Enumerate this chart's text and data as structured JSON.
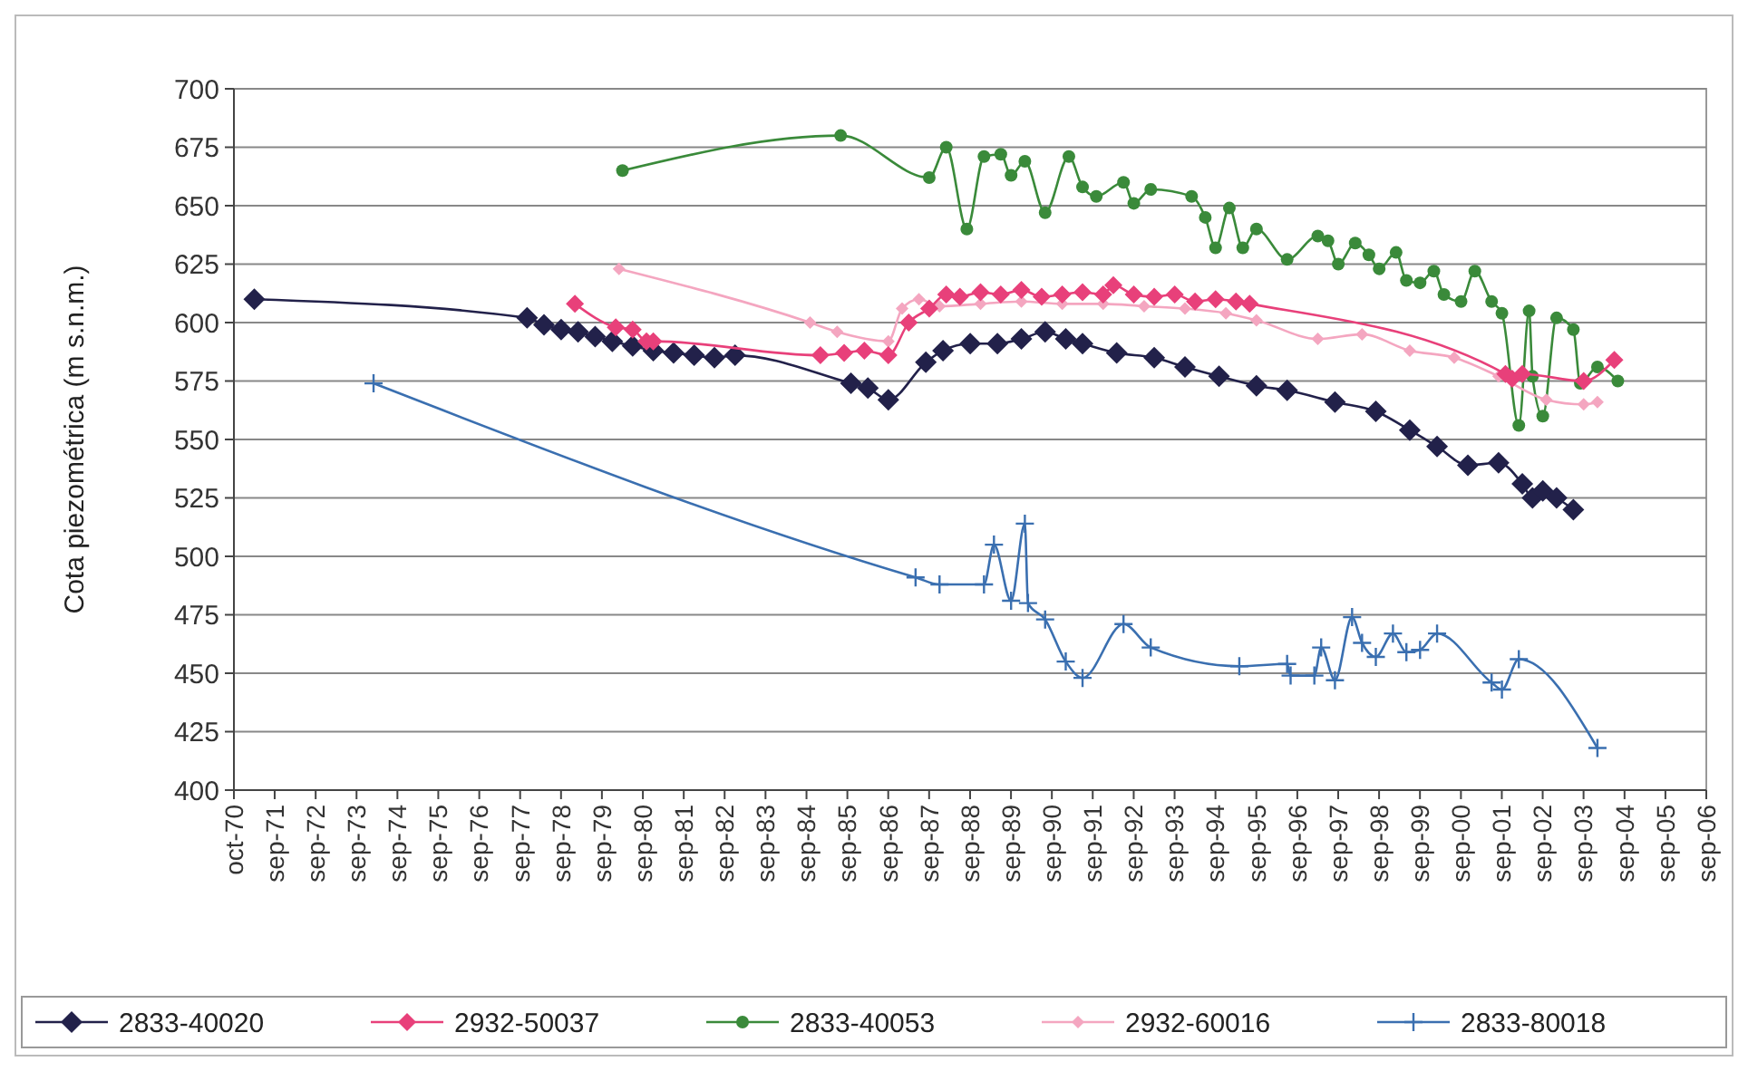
{
  "chart_data": {
    "type": "line",
    "ylabel": "Cota piezométrica (m s.n.m.)",
    "xlim": [
      "1970-10-01",
      "2006-09-30"
    ],
    "xticks": [
      {
        "value": "1970-10-01",
        "label": "oct-70"
      },
      {
        "value": "1971-09-30",
        "label": "sep-71"
      },
      {
        "value": "1972-09-30",
        "label": "sep-72"
      },
      {
        "value": "1973-09-30",
        "label": "sep-73"
      },
      {
        "value": "1974-09-30",
        "label": "sep-74"
      },
      {
        "value": "1975-09-30",
        "label": "sep-75"
      },
      {
        "value": "1976-09-30",
        "label": "sep-76"
      },
      {
        "value": "1977-09-30",
        "label": "sep-77"
      },
      {
        "value": "1978-09-30",
        "label": "sep-78"
      },
      {
        "value": "1979-09-30",
        "label": "sep-79"
      },
      {
        "value": "1980-09-30",
        "label": "sep-80"
      },
      {
        "value": "1981-09-30",
        "label": "sep-81"
      },
      {
        "value": "1982-09-30",
        "label": "sep-82"
      },
      {
        "value": "1983-09-30",
        "label": "sep-83"
      },
      {
        "value": "1984-09-30",
        "label": "sep-84"
      },
      {
        "value": "1985-09-30",
        "label": "sep-85"
      },
      {
        "value": "1986-09-30",
        "label": "sep-86"
      },
      {
        "value": "1987-09-30",
        "label": "sep-87"
      },
      {
        "value": "1988-09-30",
        "label": "sep-88"
      },
      {
        "value": "1989-09-30",
        "label": "sep-89"
      },
      {
        "value": "1990-09-30",
        "label": "sep-90"
      },
      {
        "value": "1991-09-30",
        "label": "sep-91"
      },
      {
        "value": "1992-09-30",
        "label": "sep-92"
      },
      {
        "value": "1993-09-30",
        "label": "sep-93"
      },
      {
        "value": "1994-09-30",
        "label": "sep-94"
      },
      {
        "value": "1995-09-30",
        "label": "sep-95"
      },
      {
        "value": "1996-09-30",
        "label": "sep-96"
      },
      {
        "value": "1997-09-30",
        "label": "sep-97"
      },
      {
        "value": "1998-09-30",
        "label": "sep-98"
      },
      {
        "value": "1999-09-30",
        "label": "sep-99"
      },
      {
        "value": "2000-09-30",
        "label": "sep-00"
      },
      {
        "value": "2001-09-30",
        "label": "sep-01"
      },
      {
        "value": "2002-09-30",
        "label": "sep-02"
      },
      {
        "value": "2003-09-30",
        "label": "sep-03"
      },
      {
        "value": "2004-09-30",
        "label": "sep-04"
      },
      {
        "value": "2005-09-30",
        "label": "sep-05"
      },
      {
        "value": "2006-09-30",
        "label": "sep-06"
      }
    ],
    "ylim": [
      400,
      700
    ],
    "yticks": [
      400,
      425,
      450,
      475,
      500,
      525,
      550,
      575,
      600,
      625,
      650,
      675,
      700
    ],
    "grid": "y",
    "legend": "bottom",
    "series": [
      {
        "name": "2833-40020",
        "color": "#22214a",
        "marker": "diamond",
        "x": [
          "1971-04",
          "1977-12",
          "1978-05",
          "1978-10",
          "1979-03",
          "1979-08",
          "1980-01",
          "1980-07",
          "1981-01",
          "1981-07",
          "1982-01",
          "1982-07",
          "1983-01",
          "1985-11",
          "1986-04",
          "1986-10",
          "1987-09",
          "1988-02",
          "1988-10",
          "1989-06",
          "1990-01",
          "1990-08",
          "1991-02",
          "1991-07",
          "1992-05",
          "1993-04",
          "1994-01",
          "1994-11",
          "1995-10",
          "1996-07",
          "1997-09",
          "1998-09",
          "1999-07",
          "2000-03",
          "2000-12",
          "2001-09",
          "2002-04",
          "2002-07",
          "2002-10",
          "2003-02",
          "2003-07"
        ],
        "values": [
          610,
          602,
          599,
          597,
          596,
          594,
          592,
          590,
          588,
          587,
          586,
          585,
          586,
          574,
          572,
          567,
          583,
          588,
          591,
          591,
          593,
          596,
          593,
          591,
          587,
          585,
          581,
          577,
          573,
          571,
          566,
          562,
          554,
          547,
          539,
          540,
          531,
          525,
          528,
          525,
          520
        ]
      },
      {
        "name": "2932-50037",
        "color": "#e8407a",
        "marker": "diamond",
        "x": [
          "1979-02",
          "1980-02",
          "1980-07",
          "1980-11",
          "1981-01",
          "1985-02",
          "1985-09",
          "1986-03",
          "1986-10",
          "1987-04",
          "1987-10",
          "1988-03",
          "1988-07",
          "1989-01",
          "1989-07",
          "1990-01",
          "1990-07",
          "1991-01",
          "1991-07",
          "1992-01",
          "1992-04",
          "1992-10",
          "1993-04",
          "1993-10",
          "1994-04",
          "1994-10",
          "1995-04",
          "1995-08",
          "2001-11",
          "2002-01",
          "2002-04",
          "2003-10",
          "2004-07"
        ],
        "values": [
          608,
          598,
          597,
          592,
          592,
          586,
          587,
          588,
          586,
          600,
          606,
          612,
          611,
          613,
          612,
          614,
          611,
          612,
          613,
          612,
          616,
          612,
          611,
          612,
          609,
          610,
          609,
          608,
          578,
          576,
          578,
          575,
          584
        ]
      },
      {
        "name": "2833-40053",
        "color": "#3a8a3a",
        "marker": "circle",
        "x": [
          "1980-04",
          "1985-08",
          "1987-10",
          "1988-03",
          "1988-09",
          "1989-02",
          "1989-07",
          "1989-10",
          "1990-02",
          "1990-08",
          "1991-03",
          "1991-07",
          "1991-11",
          "1992-07",
          "1992-10",
          "1993-03",
          "1994-03",
          "1994-07",
          "1994-10",
          "1995-02",
          "1995-06",
          "1995-10",
          "1996-07",
          "1997-04",
          "1997-07",
          "1997-10",
          "1998-03",
          "1998-07",
          "1998-10",
          "1999-03",
          "1999-06",
          "1999-10",
          "2000-02",
          "2000-05",
          "2000-10",
          "2001-02",
          "2001-07",
          "2001-10",
          "2002-03",
          "2002-06",
          "2002-07",
          "2002-10",
          "2003-02",
          "2003-07",
          "2003-09",
          "2004-02",
          "2004-08"
        ],
        "values": [
          665,
          680,
          662,
          675,
          640,
          671,
          672,
          663,
          669,
          647,
          671,
          658,
          654,
          660,
          651,
          657,
          654,
          645,
          632,
          649,
          632,
          640,
          627,
          637,
          635,
          625,
          634,
          629,
          623,
          630,
          618,
          617,
          622,
          612,
          609,
          622,
          609,
          604,
          556,
          605,
          577,
          560,
          602,
          597,
          574,
          581,
          575
        ]
      },
      {
        "name": "2932-60016",
        "color": "#f4a6c0",
        "marker": "diamond",
        "x": [
          "1980-03",
          "1984-11",
          "1985-07",
          "1986-10",
          "1987-02",
          "1987-07",
          "1988-01",
          "1989-01",
          "1990-01",
          "1991-01",
          "1992-01",
          "1993-01",
          "1994-01",
          "1995-01",
          "1995-10",
          "1997-04",
          "1998-05",
          "1999-07",
          "2000-08",
          "2001-09",
          "2002-11",
          "2003-10",
          "2004-02"
        ],
        "values": [
          623,
          600,
          596,
          592,
          606,
          610,
          607,
          608,
          609,
          608,
          608,
          607,
          606,
          604,
          601,
          593,
          595,
          588,
          585,
          577,
          567,
          565,
          566
        ]
      },
      {
        "name": "2833-80018",
        "color": "#3a6fb0",
        "marker": "cross",
        "x": [
          "1974-03",
          "1987-06",
          "1988-01",
          "1989-02",
          "1989-05",
          "1989-10",
          "1990-02",
          "1990-03",
          "1990-08",
          "1991-02",
          "1991-07",
          "1992-07",
          "1993-03",
          "1995-05",
          "1996-07",
          "1996-08",
          "1997-03",
          "1997-05",
          "1997-09",
          "1998-02",
          "1998-05",
          "1998-09",
          "1999-02",
          "1999-06",
          "1999-10",
          "2000-03",
          "2001-07",
          "2001-10",
          "2002-03",
          "2004-02"
        ],
        "values": [
          574,
          491,
          488,
          488,
          505,
          481,
          514,
          480,
          473,
          455,
          448,
          471,
          461,
          453,
          454,
          449,
          449,
          461,
          447,
          474,
          463,
          457,
          467,
          459,
          460,
          467,
          446,
          443,
          456,
          418
        ]
      }
    ]
  }
}
